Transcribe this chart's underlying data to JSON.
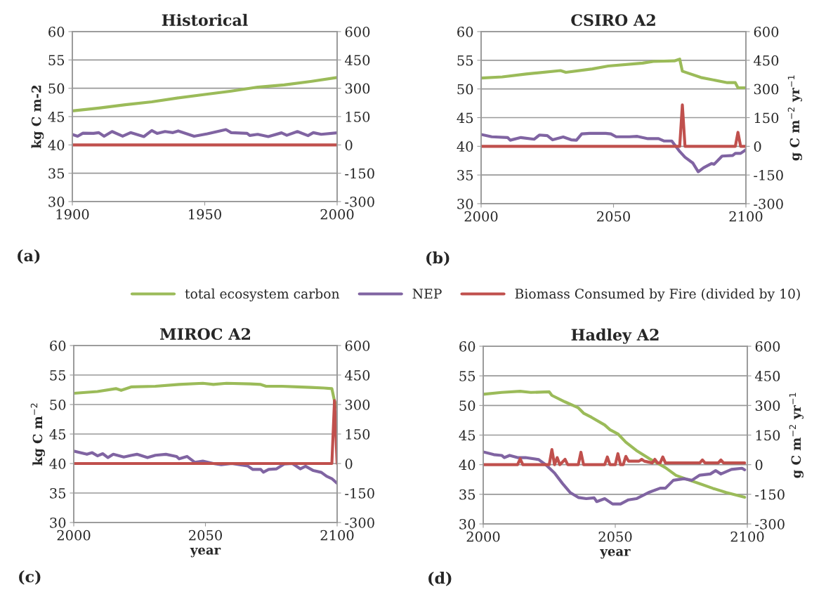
{
  "chart_data": [
    {
      "type": "line",
      "title": "Historical",
      "ylabel": "kg C m-2",
      "xlim": [
        1900,
        2000
      ],
      "xticks": [
        1900,
        1950,
        2000
      ],
      "ylim": [
        30,
        60
      ],
      "yticks": [
        30,
        35,
        40,
        45,
        50,
        55,
        60
      ],
      "y2lim": [
        -300,
        600
      ],
      "y2ticks": [
        -300,
        -150,
        0,
        150,
        300,
        450,
        600
      ],
      "grid": "y",
      "legend": "bottom",
      "annotations": [
        "(a)"
      ],
      "series": [
        {
          "name": "total ecosystem carbon",
          "color": "#9bbb59",
          "x": [
            1900,
            1910,
            1920,
            1930,
            1940,
            1950,
            1960,
            1970,
            1980,
            1990,
            2000
          ],
          "values": [
            46.0,
            46.5,
            47.1,
            47.6,
            48.3,
            48.9,
            49.5,
            50.2,
            50.6,
            51.2,
            51.9
          ]
        },
        {
          "name": "NEP",
          "color": "#8064a2",
          "axis": "y2",
          "x": [
            1900,
            1902,
            1904,
            1908,
            1910,
            1912,
            1915,
            1919,
            1922,
            1927,
            1930,
            1932,
            1935,
            1938,
            1940,
            1946,
            1951,
            1958,
            1960,
            1966,
            1967,
            1970,
            1974,
            1979,
            1981,
            1985,
            1989,
            1991,
            1994,
            2000
          ],
          "values": [
            55,
            46,
            62,
            61,
            65,
            46,
            71,
            46,
            65,
            44,
            76,
            61,
            71,
            65,
            74,
            46,
            59,
            81,
            65,
            61,
            50,
            56,
            44,
            64,
            51,
            71,
            49,
            65,
            56,
            64
          ]
        },
        {
          "name": "Biomass Consumed by Fire (divided by 10)",
          "color": "#c0504d",
          "axis": "y2",
          "x": [
            1900,
            2000
          ],
          "values": [
            0,
            0
          ]
        }
      ]
    },
    {
      "type": "line",
      "title": "CSIRO A2",
      "y2label": "g C m$^{−2}$ yr$^{−1}$",
      "xlim": [
        2000,
        2100
      ],
      "xticks": [
        2000,
        2050,
        2100
      ],
      "ylim": [
        30,
        60
      ],
      "yticks": [
        30,
        35,
        40,
        45,
        50,
        55,
        60
      ],
      "y2lim": [
        -300,
        600
      ],
      "y2ticks": [
        -300,
        -150,
        0,
        150,
        300,
        450,
        600
      ],
      "grid": "y",
      "annotations": [
        "(b)"
      ],
      "series": [
        {
          "color": "#9bbb59",
          "x": [
            2000,
            2008,
            2017,
            2030,
            2032,
            2042,
            2048,
            2061,
            2065,
            2073,
            2075,
            2076,
            2083,
            2093,
            2096,
            2097,
            2100
          ],
          "values": [
            51.9,
            52.1,
            52.6,
            53.2,
            52.9,
            53.5,
            54.0,
            54.5,
            54.8,
            54.9,
            55.2,
            53.1,
            52.0,
            51.1,
            51.1,
            50.2,
            50.2
          ]
        },
        {
          "color": "#8064a2",
          "axis": "y2",
          "x": [
            2000,
            2004,
            2010,
            2011,
            2015,
            2020,
            2022,
            2025,
            2027,
            2031,
            2034,
            2036,
            2038,
            2041,
            2047,
            2049,
            2051,
            2056,
            2059,
            2063,
            2067,
            2069,
            2072,
            2075,
            2077,
            2080,
            2082,
            2084,
            2087,
            2088,
            2091,
            2095,
            2096,
            2098,
            2100
          ],
          "values": [
            62,
            50,
            46,
            32,
            46,
            37,
            59,
            56,
            34,
            49,
            34,
            32,
            65,
            68,
            68,
            65,
            50,
            50,
            52,
            40,
            40,
            28,
            28,
            -27,
            -57,
            -88,
            -133,
            -112,
            -90,
            -94,
            -51,
            -48,
            -37,
            -37,
            -18
          ]
        },
        {
          "color": "#c0504d",
          "axis": "y2",
          "x": [
            2000,
            2075,
            2076,
            2077,
            2096,
            2097,
            2098,
            2100
          ],
          "values": [
            0,
            0,
            217,
            0,
            0,
            73,
            0,
            0
          ]
        }
      ]
    },
    {
      "type": "line",
      "title": "MIROC A2",
      "xlabel": "year",
      "ylabel": "kg C m$^{−2}$",
      "xlim": [
        2000,
        2100
      ],
      "xticks": [
        2000,
        2050,
        2100
      ],
      "ylim": [
        30,
        60
      ],
      "yticks": [
        30,
        35,
        40,
        45,
        50,
        55,
        60
      ],
      "y2lim": [
        -300,
        600
      ],
      "y2ticks": [
        -300,
        -150,
        0,
        150,
        300,
        450,
        600
      ],
      "grid": "y",
      "annotations": [
        "(c)"
      ],
      "series": [
        {
          "color": "#9bbb59",
          "x": [
            2000,
            2009,
            2016,
            2018,
            2022,
            2031,
            2040,
            2049,
            2053,
            2058,
            2067,
            2071,
            2073,
            2079,
            2085,
            2090,
            2095,
            2098,
            2099,
            2100
          ],
          "values": [
            51.9,
            52.2,
            52.7,
            52.4,
            53.0,
            53.1,
            53.4,
            53.6,
            53.4,
            53.6,
            53.5,
            53.4,
            53.1,
            53.1,
            53.0,
            52.9,
            52.8,
            52.7,
            50.6,
            49.5
          ]
        },
        {
          "color": "#8064a2",
          "axis": "y2",
          "x": [
            2000,
            2005,
            2007,
            2009,
            2011,
            2013,
            2015,
            2019,
            2022,
            2024,
            2028,
            2031,
            2035,
            2039,
            2040,
            2043,
            2046,
            2049,
            2053,
            2056,
            2060,
            2063,
            2066,
            2068,
            2071,
            2072,
            2074,
            2077,
            2080,
            2083,
            2086,
            2088,
            2091,
            2094,
            2096,
            2098,
            2100
          ],
          "values": [
            63,
            47,
            55,
            39,
            50,
            30,
            47,
            33,
            42,
            47,
            30,
            42,
            47,
            36,
            24,
            36,
            6,
            12,
            0,
            -6,
            0,
            -6,
            -12,
            -30,
            -30,
            -44,
            -30,
            -27,
            -2,
            0,
            -27,
            -14,
            -36,
            -45,
            -65,
            -77,
            -101
          ]
        },
        {
          "color": "#c0504d",
          "axis": "y2",
          "x": [
            2000,
            2098,
            2099,
            2100
          ],
          "values": [
            0,
            0,
            320,
            0
          ]
        }
      ]
    },
    {
      "type": "line",
      "title": "Hadley A2",
      "xlabel": "year",
      "y2label": "g C m$^{−2}$ yr$^{−1}$",
      "xlim": [
        2000,
        2100
      ],
      "xticks": [
        2000,
        2050,
        2100
      ],
      "ylim": [
        30,
        60
      ],
      "yticks": [
        30,
        35,
        40,
        45,
        50,
        55,
        60
      ],
      "y2lim": [
        -300,
        600
      ],
      "y2ticks": [
        -300,
        -150,
        0,
        150,
        300,
        450,
        600
      ],
      "grid": "y",
      "annotations": [
        "(d)"
      ],
      "series": [
        {
          "color": "#9bbb59",
          "x": [
            2000,
            2007,
            2014,
            2018,
            2025,
            2026,
            2031,
            2036,
            2038,
            2041,
            2046,
            2048,
            2051,
            2054,
            2058,
            2063,
            2069,
            2073,
            2078,
            2082,
            2087,
            2092,
            2099
          ],
          "values": [
            51.9,
            52.2,
            52.4,
            52.2,
            52.3,
            51.7,
            50.6,
            49.6,
            48.7,
            48.0,
            46.7,
            45.9,
            45.2,
            43.8,
            42.4,
            41.0,
            39.5,
            38.2,
            37.4,
            36.8,
            36.0,
            35.3,
            34.5
          ]
        },
        {
          "color": "#8064a2",
          "axis": "y2",
          "x": [
            2000,
            2004,
            2007,
            2008,
            2010,
            2013,
            2016,
            2021,
            2024,
            2027,
            2030,
            2033,
            2036,
            2039,
            2042,
            2043,
            2046,
            2049,
            2052,
            2055,
            2058,
            2063,
            2067,
            2069,
            2072,
            2076,
            2079,
            2082,
            2086,
            2088,
            2090,
            2094,
            2098,
            2099
          ],
          "values": [
            65,
            51,
            47,
            36,
            47,
            36,
            36,
            26,
            -4,
            -42,
            -95,
            -142,
            -166,
            -172,
            -168,
            -187,
            -172,
            -199,
            -199,
            -178,
            -172,
            -139,
            -119,
            -119,
            -79,
            -71,
            -79,
            -53,
            -47,
            -30,
            -47,
            -24,
            -18,
            -26
          ]
        },
        {
          "color": "#c0504d",
          "axis": "y2",
          "x": [
            2000,
            2013,
            2014,
            2015,
            2025,
            2026,
            2027,
            2028,
            2029,
            2031,
            2032,
            2036,
            2037,
            2038,
            2046,
            2047,
            2048,
            2050,
            2051,
            2052,
            2053,
            2054,
            2055,
            2059,
            2060,
            2061,
            2064,
            2065,
            2066,
            2067,
            2068,
            2069,
            2082,
            2083,
            2084,
            2089,
            2090,
            2091,
            2099
          ],
          "values": [
            0,
            0,
            30,
            0,
            0,
            77,
            0,
            36,
            0,
            27,
            0,
            0,
            63,
            0,
            0,
            39,
            0,
            0,
            56,
            0,
            0,
            42,
            18,
            18,
            27,
            18,
            9,
            27,
            9,
            9,
            39,
            9,
            9,
            24,
            9,
            9,
            24,
            9,
            9
          ]
        }
      ]
    }
  ]
}
